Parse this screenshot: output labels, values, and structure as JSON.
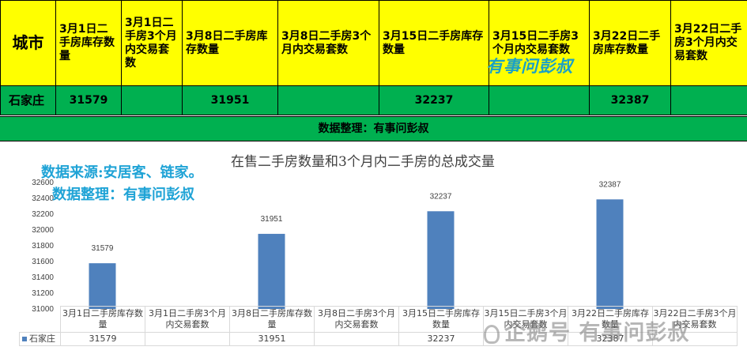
{
  "table": {
    "city_header": "城市",
    "headers": [
      "3月1日二手房库存数量",
      "3月1日二手房3个月内交易套数",
      "3月8日二手房库存数量",
      "3月8日二手房3个月内交易套数",
      "3月15日二手房库存数量",
      "3月15日二手房3个月内交易套数",
      "3月22日二手房库存数量",
      "3月22日二手房3个月内交易套数"
    ],
    "row_city": "石家庄",
    "row_values": [
      "31579",
      "",
      "31951",
      "",
      "32237",
      "",
      "32387",
      ""
    ],
    "watermark": "有事问彭叔"
  },
  "banner": "数据整理：有事问彭叔",
  "source_line1": "数据来源:安居客、链家。",
  "source_line2": "数据整理：有事问彭叔",
  "bottom_watermark": "企鹅号 有事问彭叔",
  "chart_data": {
    "type": "bar",
    "title": "在售二手房数量和3个月内二手房的总成交量",
    "categories": [
      "3月1日二手房库存数量",
      "3月1日二手房3个月内交易套数",
      "3月8日二手房库存数量",
      "3月8日二手房3个月内交易套数",
      "3月15日二手房库存数量",
      "3月15日二手房3个月内交易套数",
      "3月22日二手房库存数量",
      "3月22日二手房3个月内交易套数"
    ],
    "series": [
      {
        "name": "石家庄",
        "values": [
          31579,
          null,
          31951,
          null,
          32237,
          null,
          32387,
          null
        ],
        "color": "#4f81bd"
      }
    ],
    "yticks": [
      31000,
      31200,
      31400,
      31600,
      31800,
      32000,
      32200,
      32400,
      32600
    ],
    "ylim": [
      31000,
      32600
    ],
    "table_values": [
      "31579",
      "",
      "31951",
      "",
      "32237",
      "",
      "32387",
      ""
    ]
  }
}
